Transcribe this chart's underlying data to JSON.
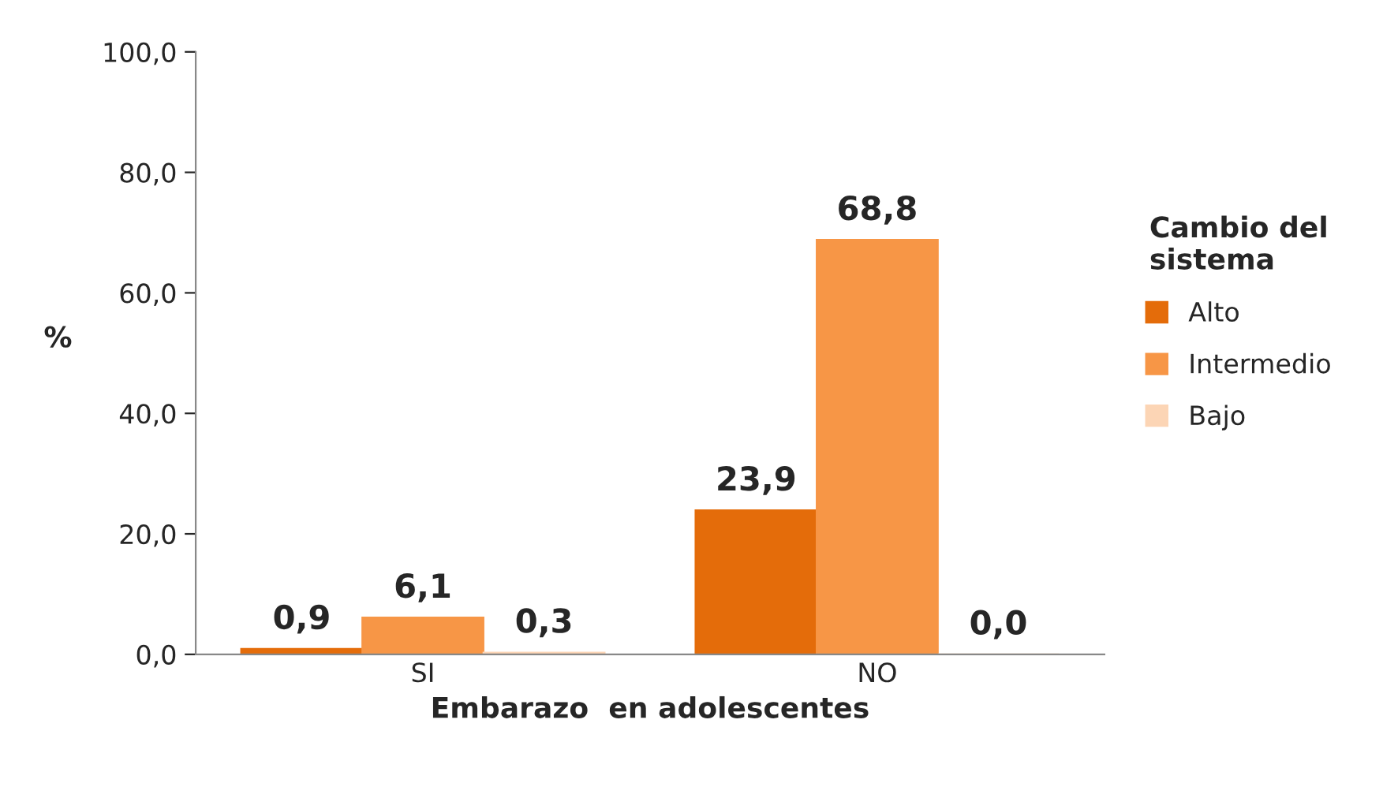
{
  "chart_data": {
    "type": "bar",
    "xlabel": "Embarazo  en adolescentes",
    "ylabel": "%",
    "legend_title": "Cambio del\nsistema",
    "categories": [
      "SI",
      "NO"
    ],
    "series": [
      {
        "name": "Alto",
        "color": "#e46c0a",
        "values": [
          0.9,
          23.9
        ],
        "value_labels": [
          "0,9",
          "23,9"
        ]
      },
      {
        "name": "Intermedio",
        "color": "#f79646",
        "values": [
          6.1,
          68.8
        ],
        "value_labels": [
          "6,1",
          "68,8"
        ]
      },
      {
        "name": "Bajo",
        "color": "#fcd5b5",
        "values": [
          0.3,
          0.0
        ],
        "value_labels": [
          "0,3",
          "0,0"
        ]
      }
    ],
    "ylim": [
      0,
      100
    ],
    "yticks": [
      {
        "value": 0,
        "label": "0,0"
      },
      {
        "value": 20,
        "label": "20,0"
      },
      {
        "value": 40,
        "label": "40,0"
      },
      {
        "value": 60,
        "label": "60,0"
      },
      {
        "value": 80,
        "label": "80,0"
      },
      {
        "value": 100,
        "label": "100,0"
      }
    ],
    "grid": false,
    "legend": "right"
  }
}
